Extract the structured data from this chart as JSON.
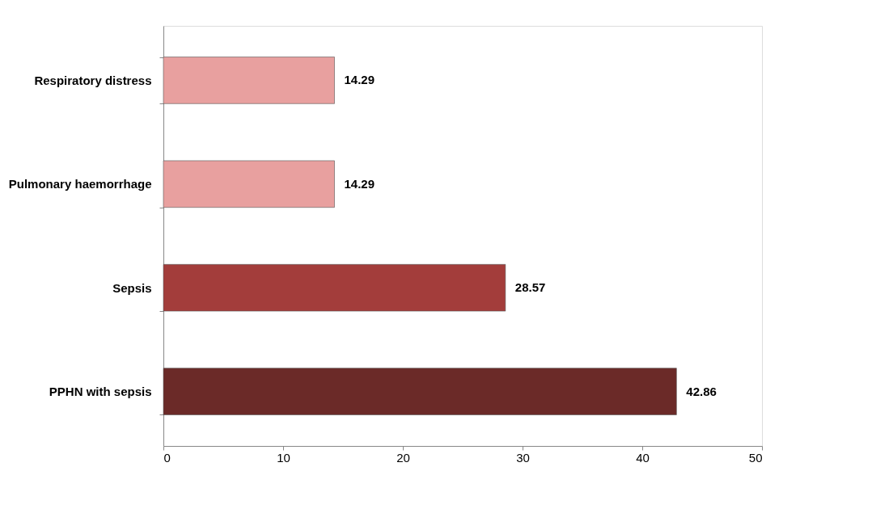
{
  "chart_data": {
    "type": "bar",
    "orientation": "horizontal",
    "categories": [
      "Respiratory distress",
      "Pulmonary haemorrhage",
      "Sepsis",
      "PPHN with sepsis"
    ],
    "values": [
      14.29,
      14.29,
      28.57,
      42.86
    ],
    "colors": [
      "#e8a09f",
      "#e8a09f",
      "#a33d3b",
      "#6b2a28"
    ],
    "xlim": [
      0,
      50
    ],
    "xticks": [
      0,
      10,
      20,
      30,
      40,
      50
    ],
    "data_labels": true,
    "grid": false,
    "legend": false
  }
}
